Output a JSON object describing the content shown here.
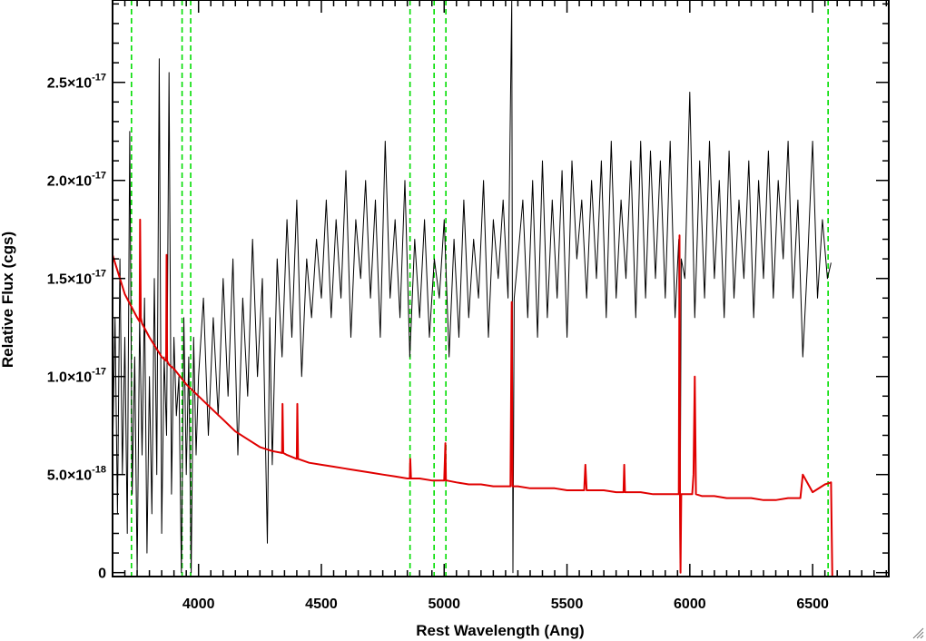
{
  "chart_data": {
    "type": "line",
    "title": "",
    "xlabel": "Rest Wavelength (Ang)",
    "ylabel": "Relative Flux (cgs)",
    "xlim": [
      3650,
      6810
    ],
    "ylim": [
      -2e-19,
      2.92e-17
    ],
    "xticks": [
      {
        "value": 4000,
        "label": "4000"
      },
      {
        "value": 4500,
        "label": "4500"
      },
      {
        "value": 5000,
        "label": "5000"
      },
      {
        "value": 5500,
        "label": "5500"
      },
      {
        "value": 6000,
        "label": "6000"
      },
      {
        "value": 6500,
        "label": "6500"
      }
    ],
    "yticks": [
      {
        "value": 0,
        "mantissa": "0",
        "exponent": ""
      },
      {
        "value": 5e-18,
        "mantissa": "5.0×10",
        "exponent": "-18"
      },
      {
        "value": 1e-17,
        "mantissa": "1.0×10",
        "exponent": "-17"
      },
      {
        "value": 1.5e-17,
        "mantissa": "1.5×10",
        "exponent": "-17"
      },
      {
        "value": 2e-17,
        "mantissa": "2.0×10",
        "exponent": "-17"
      },
      {
        "value": 2.5e-17,
        "mantissa": "2.5×10",
        "exponent": "-17"
      }
    ],
    "grid": false,
    "vertical_lines": [
      3727,
      3933,
      3968,
      4861,
      4959,
      5007,
      6563
    ],
    "series": [
      {
        "color": "#000000",
        "description_role": "observed spectrum",
        "x": [
          3650,
          3660,
          3670,
          3680,
          3690,
          3700,
          3710,
          3720,
          3730,
          3740,
          3750,
          3760,
          3770,
          3780,
          3790,
          3800,
          3810,
          3820,
          3830,
          3840,
          3850,
          3860,
          3870,
          3880,
          3890,
          3900,
          3910,
          3920,
          3930,
          3940,
          3950,
          3960,
          3970,
          3980,
          3990,
          4000,
          4020,
          4040,
          4060,
          4080,
          4100,
          4120,
          4140,
          4160,
          4180,
          4200,
          4220,
          4240,
          4260,
          4280,
          4290,
          4300,
          4320,
          4340,
          4360,
          4380,
          4400,
          4420,
          4440,
          4460,
          4480,
          4500,
          4520,
          4540,
          4560,
          4580,
          4600,
          4620,
          4640,
          4660,
          4680,
          4700,
          4720,
          4740,
          4760,
          4780,
          4800,
          4820,
          4840,
          4860,
          4880,
          4900,
          4920,
          4940,
          4960,
          4980,
          5000,
          5020,
          5040,
          5060,
          5080,
          5100,
          5120,
          5140,
          5160,
          5180,
          5200,
          5220,
          5240,
          5260,
          5275,
          5280,
          5285,
          5300,
          5320,
          5340,
          5360,
          5380,
          5400,
          5420,
          5440,
          5460,
          5480,
          5500,
          5520,
          5540,
          5560,
          5580,
          5600,
          5620,
          5640,
          5660,
          5680,
          5700,
          5720,
          5740,
          5760,
          5780,
          5800,
          5820,
          5840,
          5860,
          5880,
          5900,
          5920,
          5940,
          5955,
          5960,
          5965,
          5980,
          6000,
          6020,
          6040,
          6060,
          6080,
          6100,
          6120,
          6140,
          6160,
          6180,
          6200,
          6220,
          6240,
          6260,
          6280,
          6300,
          6320,
          6340,
          6360,
          6380,
          6400,
          6420,
          6440,
          6460,
          6480,
          6500,
          6520,
          6540,
          6560,
          6575
        ],
        "y": [
          6e-18,
          1.3e-17,
          3e-18,
          1.6e-17,
          5e-18,
          1.2e-17,
          2e-18,
          2.25e-17,
          4e-18,
          1.1e-17,
          0.0,
          1.3e-17,
          6e-18,
          1.4e-17,
          1e-18,
          1e-17,
          3e-18,
          1.5e-17,
          5e-18,
          2.62e-17,
          2e-18,
          1.1e-17,
          7e-18,
          2.55e-17,
          4e-18,
          1.2e-17,
          8e-18,
          1e-17,
          0.0,
          1.3e-17,
          5e-18,
          1.1e-17,
          0.0,
          1.2e-17,
          6e-18,
          1e-17,
          1.4e-17,
          7e-18,
          1.3e-17,
          8e-18,
          1.5e-17,
          9e-18,
          1.6e-17,
          6e-18,
          1.4e-17,
          9e-18,
          1.7e-17,
          1e-17,
          1.5e-17,
          1.5e-18,
          1.3e-17,
          5.5e-18,
          1.6e-17,
          1.1e-17,
          1.8e-17,
          1.2e-17,
          1.9e-17,
          1e-17,
          1.6e-17,
          1.3e-17,
          1.7e-17,
          1.4e-17,
          1.9e-17,
          1.3e-17,
          1.8e-17,
          1.4e-17,
          2.05e-17,
          1.2e-17,
          1.8e-17,
          1.5e-17,
          2e-17,
          1.4e-17,
          1.9e-17,
          1.2e-17,
          2.2e-17,
          1.4e-17,
          1.8e-17,
          1.3e-17,
          2e-17,
          1.1e-17,
          1.7e-17,
          1.3e-17,
          1.8e-17,
          1.2e-17,
          1.6e-17,
          1.4e-17,
          1.8e-17,
          1.1e-17,
          1.7e-17,
          1.2e-17,
          1.9e-17,
          1.3e-17,
          1.7e-17,
          1.4e-17,
          2e-17,
          1.2e-17,
          1.8e-17,
          1.5e-17,
          1.9e-17,
          1.4e-17,
          2.92e-17,
          0.0,
          1.4e-17,
          1.6e-17,
          1.9e-17,
          1.3e-17,
          2e-17,
          1.2e-17,
          2.1e-17,
          1.3e-17,
          1.9e-17,
          1.4e-17,
          2.05e-17,
          1.2e-17,
          2.1e-17,
          1.6e-17,
          1.9e-17,
          1.4e-17,
          2e-17,
          1.5e-17,
          2.1e-17,
          1.3e-17,
          2.2e-17,
          1.4e-17,
          1.9e-17,
          1.5e-17,
          2.1e-17,
          1.3e-17,
          2.2e-17,
          1.4e-17,
          2.15e-17,
          1.5e-17,
          2.1e-17,
          1.4e-17,
          2.2e-17,
          1.3e-17,
          1.7e-17,
          5e-19,
          1.6e-17,
          1.5e-17,
          2.45e-17,
          1.3e-17,
          2.1e-17,
          1.4e-17,
          2.2e-17,
          1.5e-17,
          2e-17,
          1.3e-17,
          2.15e-17,
          1.4e-17,
          1.9e-17,
          1.5e-17,
          2.1e-17,
          1.3e-17,
          2e-17,
          1.5e-17,
          2.15e-17,
          1.4e-17,
          2e-17,
          1.6e-17,
          2.2e-17,
          1.4e-17,
          1.9e-17,
          1.1e-17,
          1.6e-17,
          2.2e-17,
          1.4e-17,
          1.8e-17,
          1.5e-17,
          1.58e-17
        ]
      },
      {
        "color": "#e00000",
        "description_role": "model fit",
        "x": [
          3650,
          3700,
          3750,
          3760,
          3762,
          3765,
          3770,
          3800,
          3850,
          3868,
          3870,
          3872,
          3880,
          3900,
          3950,
          4000,
          4050,
          4100,
          4150,
          4200,
          4250,
          4300,
          4340,
          4342,
          4345,
          4360,
          4400,
          4402,
          4405,
          4450,
          4500,
          4550,
          4600,
          4650,
          4700,
          4750,
          4800,
          4850,
          4860,
          4862,
          4865,
          4900,
          4950,
          4990,
          5000,
          5005,
          5007,
          5010,
          5050,
          5100,
          5150,
          5200,
          5250,
          5270,
          5275,
          5278,
          5280,
          5285,
          5300,
          5350,
          5400,
          5450,
          5500,
          5550,
          5570,
          5575,
          5580,
          5600,
          5650,
          5700,
          5730,
          5733,
          5736,
          5750,
          5800,
          5850,
          5900,
          5940,
          5955,
          5958,
          5960,
          5962,
          5965,
          6000,
          6010,
          6015,
          6020,
          6025,
          6050,
          6100,
          6150,
          6200,
          6250,
          6300,
          6350,
          6400,
          6450,
          6460,
          6500,
          6550,
          6575,
          6580,
          6810
        ],
        "y": [
          1.62e-17,
          1.42e-17,
          1.3e-17,
          1.28e-17,
          1.8e-17,
          1.3e-17,
          1.27e-17,
          1.2e-17,
          1.1e-17,
          1.08e-17,
          1.62e-17,
          1.08e-17,
          1.06e-17,
          1.04e-17,
          9.6e-18,
          9e-18,
          8.4e-18,
          7.8e-18,
          7.2e-18,
          6.8e-18,
          6.4e-18,
          6.2e-18,
          6.1e-18,
          8.6e-18,
          6.1e-18,
          6e-18,
          5.8e-18,
          8.6e-18,
          5.8e-18,
          5.6e-18,
          5.5e-18,
          5.4e-18,
          5.3e-18,
          5.2e-18,
          5.1e-18,
          5e-18,
          4.9e-18,
          4.8e-18,
          4.8e-18,
          5.8e-18,
          4.8e-18,
          4.8e-18,
          4.7e-18,
          4.7e-18,
          4.7e-18,
          6.6e-18,
          4.7e-18,
          4.7e-18,
          4.6e-18,
          4.5e-18,
          4.5e-18,
          4.4e-18,
          4.4e-18,
          4.4e-18,
          1.38e-17,
          4.4e-18,
          4.4e-18,
          4.4e-18,
          4.4e-18,
          4.3e-18,
          4.3e-18,
          4.3e-18,
          4.2e-18,
          4.2e-18,
          4.2e-18,
          5.5e-18,
          4.2e-18,
          4.2e-18,
          4.2e-18,
          4.1e-18,
          4.1e-18,
          5.5e-18,
          4.1e-18,
          4.1e-18,
          4.1e-18,
          4e-18,
          4e-18,
          4e-18,
          4e-18,
          1.72e-17,
          4e-18,
          0.0,
          4e-18,
          4e-18,
          4e-18,
          5e-18,
          1e-17,
          4e-18,
          3.9e-18,
          3.9e-18,
          3.8e-18,
          3.8e-18,
          3.8e-18,
          3.7e-18,
          3.7e-18,
          3.8e-18,
          3.8e-18,
          5e-18,
          4.1e-18,
          4.5e-18,
          4.6e-18,
          -2e-19,
          -2e-19
        ]
      }
    ]
  }
}
